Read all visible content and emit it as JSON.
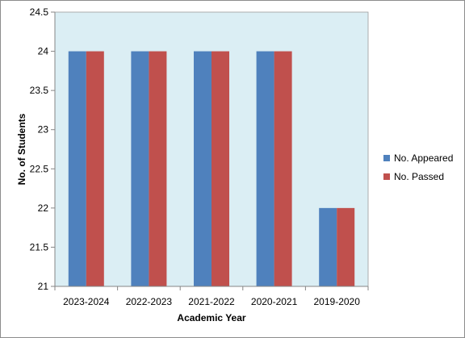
{
  "chart_data": {
    "type": "bar",
    "title": "",
    "xlabel": "Academic Year",
    "ylabel": "No. of Students",
    "categories": [
      "2023-2024",
      "2022-2023",
      "2021-2022",
      "2020-2021",
      "2019-2020"
    ],
    "series": [
      {
        "name": "No. Appeared",
        "values": [
          24,
          24,
          24,
          24,
          22
        ],
        "color": "#4f81bd"
      },
      {
        "name": "No. Passed",
        "values": [
          24,
          24,
          24,
          24,
          22
        ],
        "color": "#c0504d"
      }
    ],
    "ylim": [
      21,
      24.5
    ],
    "yticks": [
      "21",
      "21.5",
      "22",
      "22.5",
      "23",
      "23.5",
      "24",
      "24.5"
    ],
    "plot_background": "#dbeef4",
    "grid": false,
    "legend_position": "right"
  }
}
